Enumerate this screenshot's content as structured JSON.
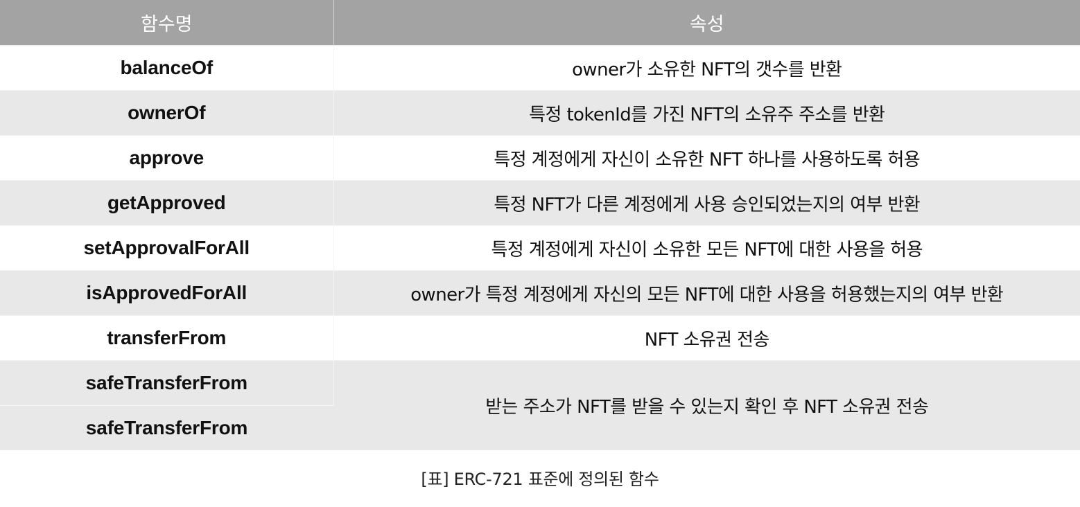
{
  "table": {
    "headers": {
      "function_name": "함수명",
      "attribute": "속성"
    },
    "rows": [
      {
        "fn": "balanceOf",
        "desc": "owner가 소유한 NFT의 갯수를 반환"
      },
      {
        "fn": "ownerOf",
        "desc": "특정 tokenId를 가진 NFT의 소유주 주소를 반환"
      },
      {
        "fn": "approve",
        "desc": "특정 계정에게 자신이 소유한 NFT 하나를 사용하도록 허용"
      },
      {
        "fn": "getApproved",
        "desc": "특정 NFT가 다른 계정에게 사용 승인되었는지의 여부 반환"
      },
      {
        "fn": "setApprovalForAll",
        "desc": "특정 계정에게 자신이 소유한 모든 NFT에 대한 사용을 허용"
      },
      {
        "fn": "isApprovedForAll",
        "desc": "owner가 특정 계정에게 자신의 모든 NFT에 대한 사용을 허용했는지의 여부 반환"
      },
      {
        "fn": "transferFrom",
        "desc": "NFT 소유권 전송"
      },
      {
        "fn": "safeTransferFrom",
        "desc": "받는 주소가 NFT를 받을 수 있는지 확인 후 NFT 소유권 전송"
      },
      {
        "fn": "safeTransferFrom"
      }
    ]
  },
  "caption": "[표] ERC-721 표준에 정의된 함수",
  "colors": {
    "header_bg": "#a3a3a3",
    "header_text": "#ffffff",
    "row_alt_bg": "#e8e8e8",
    "row_bg": "#ffffff"
  }
}
